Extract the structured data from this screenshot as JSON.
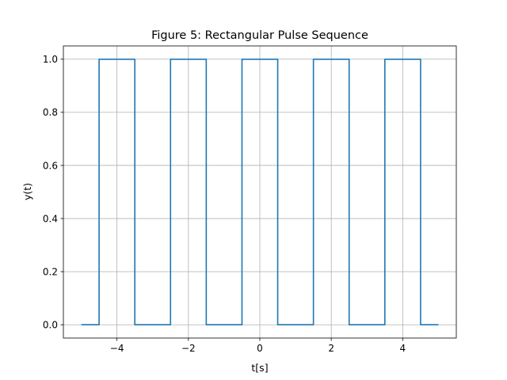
{
  "chart_data": {
    "type": "line",
    "title": "Figure 5: Rectangular Pulse Sequence",
    "xlabel": "t[s]",
    "ylabel": "y(t)",
    "xlim": [
      -5.5,
      5.5
    ],
    "ylim": [
      -0.05,
      1.05
    ],
    "x_ticks": [
      -4,
      -2,
      0,
      2,
      4
    ],
    "x_tick_labels": [
      "−4",
      "−2",
      "0",
      "2",
      "4"
    ],
    "y_ticks": [
      0.0,
      0.2,
      0.4,
      0.6,
      0.8,
      1.0
    ],
    "y_tick_labels": [
      "0.0",
      "0.2",
      "0.4",
      "0.6",
      "0.8",
      "1.0"
    ],
    "grid": true,
    "series": [
      {
        "color": "#1f77b4",
        "x": [
          -5.0,
          -4.5,
          -4.5,
          -3.5,
          -3.5,
          -2.5,
          -2.5,
          -1.5,
          -1.5,
          -0.5,
          -0.5,
          0.5,
          0.5,
          1.5,
          1.5,
          2.5,
          2.5,
          3.5,
          3.5,
          4.5,
          4.5,
          5.0
        ],
        "y": [
          0,
          0,
          1,
          1,
          0,
          0,
          1,
          1,
          0,
          0,
          1,
          1,
          0,
          0,
          1,
          1,
          0,
          0,
          1,
          1,
          0,
          0
        ]
      }
    ]
  }
}
